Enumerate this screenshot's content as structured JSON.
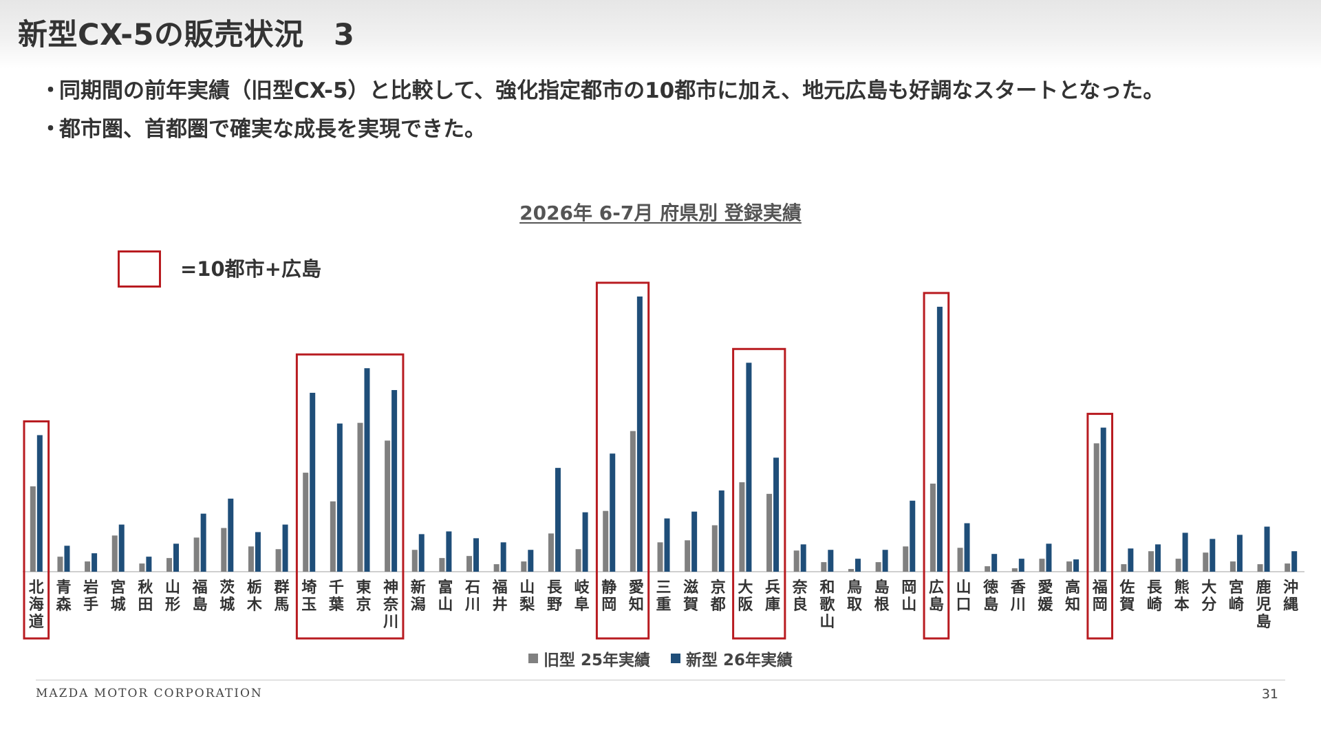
{
  "header": {
    "title": "新型CX-5の販売状況　3"
  },
  "bullets": [
    "同期間の前年実績（旧型CX-5）と比較して、強化指定都市の10都市に加え、地元広島も好調なスタートとなった。",
    "都市圏、首都圏で確実な成長を実現できた。"
  ],
  "legend_box_label": "=10都市+広島",
  "footer": {
    "company": "MAZDA MOTOR CORPORATION",
    "page": "31"
  },
  "colors": {
    "old": "#808080",
    "new": "#1f4e79",
    "highlight": "#b81b20"
  },
  "chart_data": {
    "type": "bar",
    "title": "2026年 6-7月 府県別 登録実績",
    "categories": [
      "北海道",
      "青森",
      "岩手",
      "宮城",
      "秋田",
      "山形",
      "福島",
      "茨城",
      "栃木",
      "群馬",
      "埼玉",
      "千葉",
      "東京",
      "神奈川",
      "新潟",
      "富山",
      "石川",
      "福井",
      "山梨",
      "長野",
      "岐阜",
      "静岡",
      "愛知",
      "三重",
      "滋賀",
      "京都",
      "大阪",
      "兵庫",
      "奈良",
      "和歌山",
      "鳥取",
      "島根",
      "岡山",
      "広島",
      "山口",
      "徳島",
      "香川",
      "愛媛",
      "高知",
      "福岡",
      "佐賀",
      "長崎",
      "熊本",
      "大分",
      "宮崎",
      "鹿児島",
      "沖縄"
    ],
    "series": [
      {
        "name": "旧型 25年実績",
        "values": [
          125,
          22,
          15,
          53,
          12,
          20,
          50,
          64,
          37,
          33,
          145,
          103,
          218,
          192,
          32,
          20,
          23,
          11,
          15,
          56,
          33,
          89,
          206,
          43,
          46,
          68,
          131,
          114,
          31,
          14,
          4,
          14,
          37,
          129,
          35,
          8,
          5,
          19,
          15,
          188,
          11,
          30,
          19,
          28,
          15,
          11,
          12
        ]
      },
      {
        "name": "新型 26年実績",
        "values": [
          200,
          38,
          27,
          69,
          22,
          41,
          85,
          107,
          58,
          69,
          262,
          217,
          298,
          266,
          55,
          59,
          49,
          43,
          32,
          152,
          87,
          173,
          403,
          78,
          88,
          119,
          306,
          167,
          40,
          32,
          19,
          32,
          104,
          388,
          71,
          26,
          19,
          41,
          18,
          211,
          34,
          40,
          57,
          48,
          54,
          66,
          30
        ]
      }
    ],
    "highlighted": [
      "北海道",
      "埼玉",
      "千葉",
      "東京",
      "神奈川",
      "静岡",
      "愛知",
      "大阪",
      "兵庫",
      "広島",
      "福岡"
    ],
    "legend_position": "bottom"
  }
}
